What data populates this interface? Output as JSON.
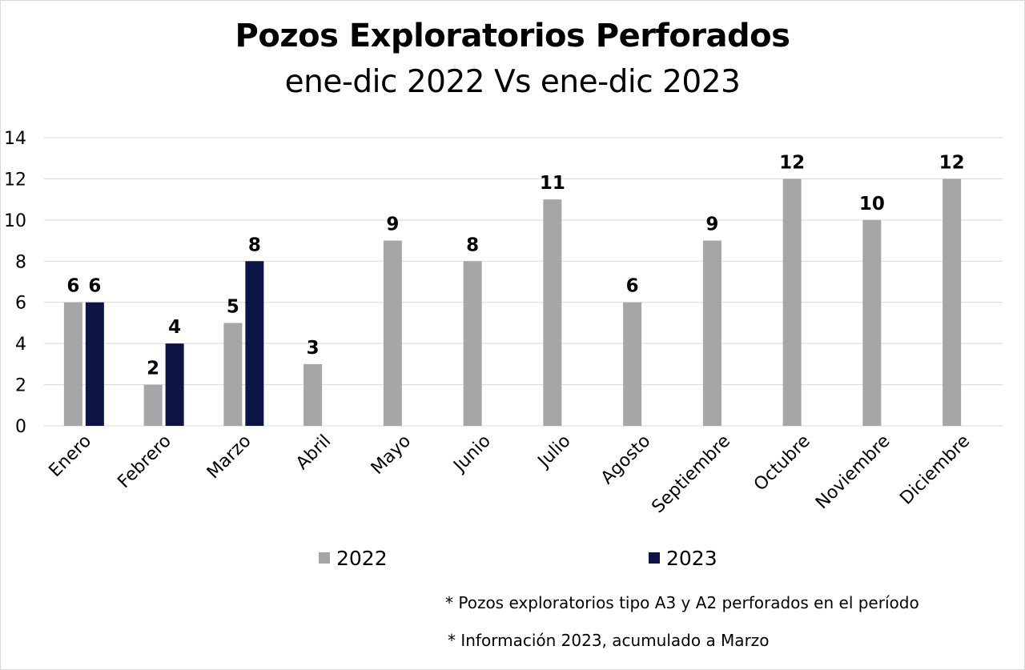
{
  "chart_data": {
    "type": "bar",
    "title": "Pozos Exploratorios Perforados",
    "subtitle": "ene-dic 2022 Vs ene-dic 2023",
    "categories": [
      "Enero",
      "Febrero",
      "Marzo",
      "Abril",
      "Mayo",
      "Junio",
      "Julio",
      "Agosto",
      "Septiembre",
      "Octubre",
      "Noviembre",
      "Diciembre"
    ],
    "series": [
      {
        "name": "2022",
        "color": "#a6a6a6",
        "values": [
          6,
          2,
          5,
          3,
          9,
          8,
          11,
          6,
          9,
          12,
          10,
          12
        ]
      },
      {
        "name": "2023",
        "color": "#0c1446",
        "values": [
          6,
          4,
          8,
          null,
          null,
          null,
          null,
          null,
          null,
          null,
          null,
          null
        ]
      }
    ],
    "ylim": [
      0,
      14
    ],
    "yticks": [
      0,
      2,
      4,
      6,
      8,
      10,
      12,
      14
    ],
    "grid": true,
    "legend_position": "bottom",
    "data_labels": true
  },
  "notes": [
    "* Pozos exploratorios tipo A3 y A2 perforados en el período",
    "* Información 2023, acumulado a Marzo"
  ]
}
